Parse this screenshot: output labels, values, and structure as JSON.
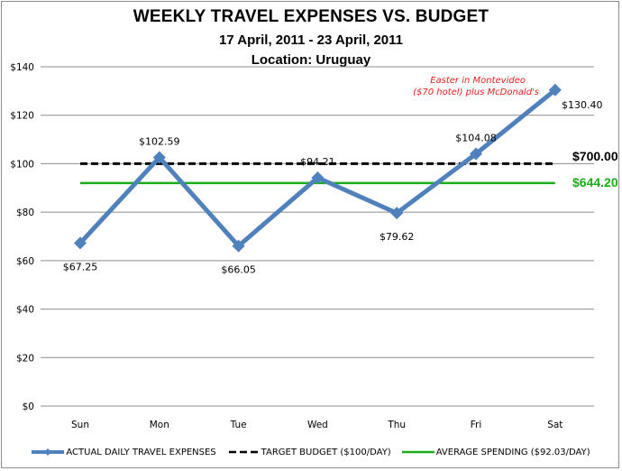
{
  "header": {
    "title": "WEEKLY TRAVEL EXPENSES VS. BUDGET",
    "subtitle": "17 April, 2011 - 23 April, 2011",
    "location": "Location: Uruguay"
  },
  "annotation": {
    "line1": "Easter in Montevideo",
    "line2": "($70 hotel) plus McDonald's"
  },
  "totals": {
    "budget_total": "$700.00",
    "actual_total": "$644.20"
  },
  "colors": {
    "actual": "#4F81BD",
    "target": "#000000",
    "average": "#1AAD19",
    "annotation": "#E8201E",
    "gridline": "#8C8C8C"
  },
  "legend": [
    {
      "label": "ACTUAL DAILY TRAVEL EXPENSES",
      "style": "line-diamond"
    },
    {
      "label": "TARGET BUDGET ($100/DAY)",
      "style": "dashed"
    },
    {
      "label": "AVERAGE SPENDING ($92.03/DAY)",
      "style": "solid"
    }
  ],
  "chart_data": {
    "type": "line",
    "title": "WEEKLY TRAVEL EXPENSES VS. BUDGET",
    "subtitle": "17 April, 2011 - 23 April, 2011 / Location: Uruguay",
    "xlabel": "",
    "ylabel": "",
    "ylim": [
      0,
      140
    ],
    "yticks": [
      "$0",
      "$20",
      "$40",
      "$60",
      "$80",
      "$100",
      "$120",
      "$140"
    ],
    "categories": [
      "Sun",
      "Mon",
      "Tue",
      "Wed",
      "Thu",
      "Fri",
      "Sat"
    ],
    "grid": true,
    "legend_position": "bottom",
    "series": [
      {
        "name": "ACTUAL DAILY TRAVEL EXPENSES",
        "values": [
          67.25,
          102.59,
          66.05,
          94.21,
          79.62,
          104.08,
          130.4
        ],
        "labels": [
          "$67.25",
          "$102.59",
          "$66.05",
          "$94.21",
          "$79.62",
          "$104.08",
          "$130.40"
        ]
      },
      {
        "name": "TARGET BUDGET ($100/DAY)",
        "values": [
          100,
          100,
          100,
          100,
          100,
          100,
          100
        ],
        "end_label": "$700.00"
      },
      {
        "name": "AVERAGE SPENDING ($92.03/DAY)",
        "values": [
          92.03,
          92.03,
          92.03,
          92.03,
          92.03,
          92.03,
          92.03
        ],
        "end_label": "$644.20"
      }
    ],
    "annotations": [
      "Easter in Montevideo ($70 hotel) plus McDonald's"
    ]
  }
}
